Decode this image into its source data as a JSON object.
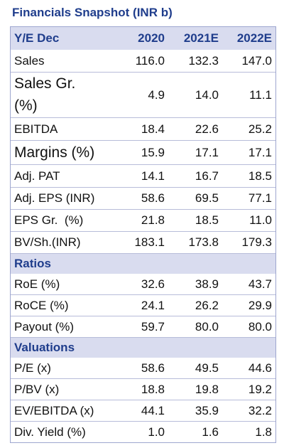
{
  "title": "Financials Snapshot (INR b)",
  "header": {
    "label": "Y/E Dec",
    "cols": [
      "2020",
      "2021E",
      "2022E"
    ]
  },
  "rows": [
    {
      "label": "Sales",
      "values": [
        "116.0",
        "132.3",
        "147.0"
      ]
    },
    {
      "label": "Sales Gr. (%)",
      "values": [
        "4.9",
        "14.0",
        "11.1"
      ]
    },
    {
      "label": "EBITDA",
      "values": [
        "18.4",
        "22.6",
        "25.2"
      ]
    },
    {
      "label": "Margins (%)",
      "values": [
        "15.9",
        "17.1",
        "17.1"
      ]
    },
    {
      "label": "Adj. PAT",
      "values": [
        "14.1",
        "16.7",
        "18.5"
      ]
    },
    {
      "label": "Adj. EPS (INR)",
      "values": [
        "58.6",
        "69.5",
        "77.1"
      ]
    },
    {
      "label": "EPS Gr.  (%)",
      "values": [
        "21.8",
        "18.5",
        "11.0"
      ]
    },
    {
      "label": "BV/Sh.(INR)",
      "values": [
        "183.1",
        "173.8",
        "179.3"
      ]
    }
  ],
  "ratios": {
    "section_label": "Ratios",
    "rows": [
      {
        "label": "RoE (%)",
        "values": [
          "32.6",
          "38.9",
          "43.7"
        ]
      },
      {
        "label": "RoCE (%)",
        "values": [
          "24.1",
          "26.2",
          "29.9"
        ]
      },
      {
        "label": "Payout (%)",
        "values": [
          "59.7",
          "80.0",
          "80.0"
        ]
      }
    ]
  },
  "valuations": {
    "section_label": "Valuations",
    "rows": [
      {
        "label": "P/E (x)",
        "values": [
          "58.6",
          "49.5",
          "44.6"
        ]
      },
      {
        "label": "P/BV (x)",
        "values": [
          "18.8",
          "19.8",
          "19.2"
        ]
      },
      {
        "label": "EV/EBITDA (x)",
        "values": [
          "44.1",
          "35.9",
          "32.2"
        ]
      },
      {
        "label": "Div. Yield (%)",
        "values": [
          "1.0",
          "1.6",
          "1.8"
        ]
      }
    ]
  },
  "colors": {
    "title": "#1f3d8c",
    "header_bg": "#d9dcef",
    "rule": "#b7bcd9"
  }
}
